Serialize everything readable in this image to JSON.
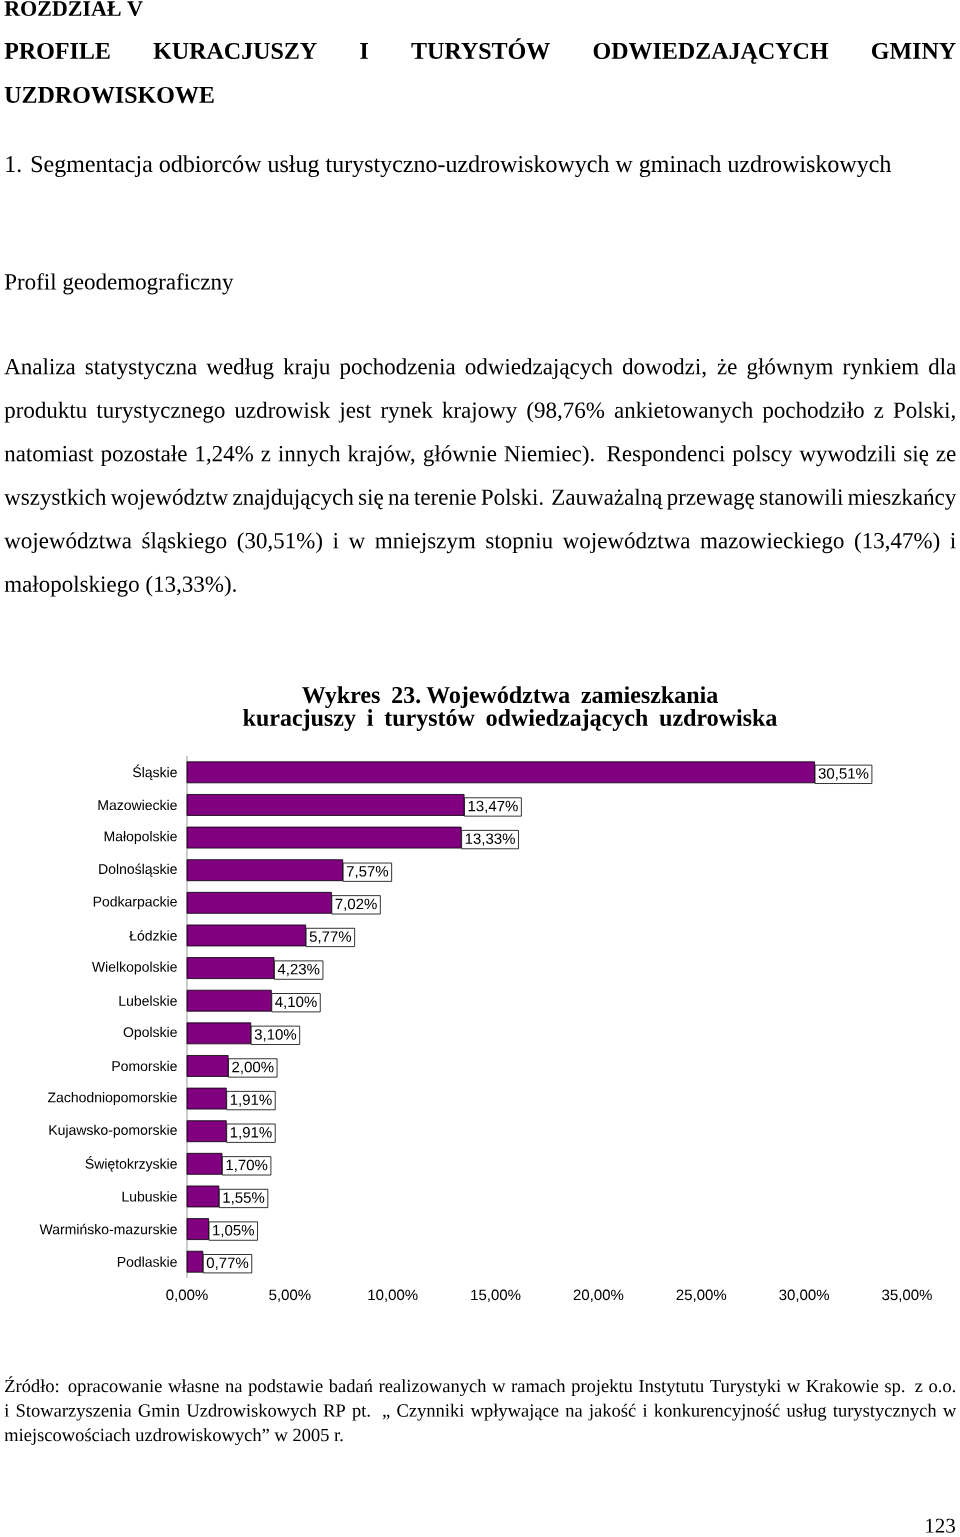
{
  "chart_data": {
    "type": "bar",
    "orientation": "horizontal",
    "title": "Wykres 23. Województwa zamieszkania kuracjuszy i turystów odwiedzających uzdrowiska",
    "categories": [
      "Śląskie",
      "Mazowieckie",
      "Małopolskie",
      "Dolnośląskie",
      "Podkarpackie",
      "Łódzkie",
      "Wielkopolskie",
      "Lubelskie",
      "Opolskie",
      "Pomorskie",
      "Zachodniopomorskie",
      "Kujawsko-pomorskie",
      "Świętokrzyskie",
      "Lubuskie",
      "Warmińsko-mazurskie",
      "Podlaskie"
    ],
    "values": [
      30.51,
      13.47,
      13.33,
      7.57,
      7.02,
      5.77,
      4.23,
      4.1,
      3.1,
      2.0,
      1.91,
      1.91,
      1.7,
      1.55,
      1.05,
      0.77
    ],
    "value_labels": [
      "30,51%",
      "13,47%",
      "13,33%",
      "7,57%",
      "7,02%",
      "5,77%",
      "4,23%",
      "4,10%",
      "3,10%",
      "2,00%",
      "1,91%",
      "1,91%",
      "1,70%",
      "1,55%",
      "1,05%",
      "0,77%"
    ],
    "color": "#800080",
    "xlim": [
      0,
      35
    ],
    "xticks": [
      {
        "value": 0,
        "label": "0,00%"
      },
      {
        "value": 5,
        "label": "5,00%"
      },
      {
        "value": 10,
        "label": "10,00%"
      },
      {
        "value": 15,
        "label": "15,00%"
      },
      {
        "value": 20,
        "label": "20,00%"
      },
      {
        "value": 25,
        "label": "25,00%"
      },
      {
        "value": 30,
        "label": "30,00%"
      },
      {
        "value": 35,
        "label": "35,00%"
      }
    ],
    "grid": false,
    "annotations": [
      "ROZDZIAŁ V",
      "PROFILE KURACJUSZY I TURYSTÓW ODWIEDZAJĄCYCH GMINY UZDROWISKOWE",
      "1. Segmentacja odbiorców usług turystyczno-uzdrowiskowych w gminach uzdrowiskowych",
      "Profil geodemograficzny",
      "Analiza statystyczna według kraju pochodzenia odwiedzających dowodzi, że głównym rynkiem dla produktu turystycznego uzdrowisk jest rynek krajowy (98,76% ankietowanych pochodziło z Polski, natomiast pozostałe 1,24% z innych krajów, głównie Niemiec). Respondenci polscy wywodzili się ze wszystkich województw znajdujących się na terenie Polski. Zauważalną przewagę stanowili mieszkańcy województwa śląskiego (30,51%) i w mniejszym stopniu województwa mazowieckiego (13,47%) i małopolskiego (13,33%).",
      "Źródło: opracowanie własne na podstawie badań realizowanych w ramach projektu Instytutu Turystyki w Krakowie sp. z o.o. i Stowarzyszenia Gmin Uzdrowiskowych RP pt. „ Czynniki wpływające na jakość i konkurencyjność usług turystycznych w miejscowościach uzdrowiskowych” w 2005 r.",
      "123"
    ]
  }
}
